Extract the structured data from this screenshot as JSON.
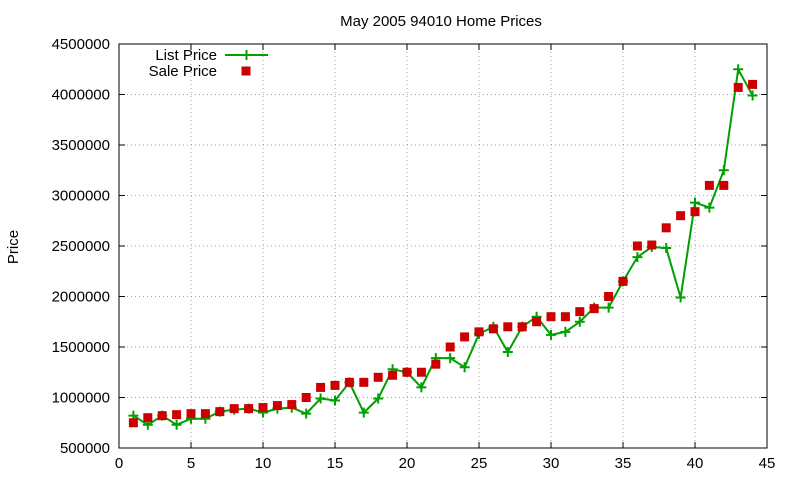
{
  "chart_data": {
    "type": "line",
    "title": "May 2005 94010 Home Prices",
    "xlabel": "",
    "ylabel": "Price",
    "xlim": [
      0,
      45
    ],
    "ylim": [
      500000,
      4500000
    ],
    "xticks": [
      0,
      5,
      10,
      15,
      20,
      25,
      30,
      35,
      40,
      45
    ],
    "yticks": [
      500000,
      1000000,
      1500000,
      2000000,
      2500000,
      3000000,
      3500000,
      4000000,
      4500000
    ],
    "grid": true,
    "legend_position": "top-left",
    "series": [
      {
        "name": "List Price",
        "style": "linespoints",
        "marker": "plus",
        "color": "#00a000",
        "x": [
          1,
          2,
          3,
          4,
          5,
          6,
          7,
          8,
          9,
          10,
          11,
          12,
          13,
          14,
          15,
          16,
          17,
          18,
          19,
          20,
          21,
          22,
          23,
          24,
          25,
          26,
          27,
          28,
          29,
          30,
          31,
          32,
          33,
          34,
          35,
          36,
          37,
          38,
          39,
          40,
          41,
          42,
          43,
          44
        ],
        "values": [
          820000,
          730000,
          820000,
          730000,
          790000,
          790000,
          860000,
          880000,
          890000,
          850000,
          890000,
          900000,
          840000,
          990000,
          970000,
          1150000,
          850000,
          990000,
          1280000,
          1250000,
          1100000,
          1390000,
          1390000,
          1300000,
          1630000,
          1700000,
          1450000,
          1700000,
          1800000,
          1620000,
          1650000,
          1750000,
          1890000,
          1890000,
          2150000,
          2390000,
          2490000,
          2480000,
          1990000,
          2930000,
          2880000,
          3250000,
          4250000,
          3990000
        ]
      },
      {
        "name": "Sale Price",
        "style": "points",
        "marker": "square",
        "color": "#cc0000",
        "x": [
          1,
          2,
          3,
          4,
          5,
          6,
          7,
          8,
          9,
          10,
          11,
          12,
          13,
          14,
          15,
          16,
          17,
          18,
          19,
          20,
          21,
          22,
          23,
          24,
          25,
          26,
          27,
          28,
          29,
          30,
          31,
          32,
          33,
          34,
          35,
          36,
          37,
          38,
          39,
          40,
          41,
          42,
          43,
          44
        ],
        "values": [
          750000,
          800000,
          820000,
          830000,
          840000,
          840000,
          860000,
          890000,
          890000,
          900000,
          920000,
          930000,
          1000000,
          1100000,
          1120000,
          1150000,
          1150000,
          1200000,
          1220000,
          1250000,
          1250000,
          1330000,
          1500000,
          1600000,
          1650000,
          1680000,
          1700000,
          1700000,
          1750000,
          1800000,
          1800000,
          1850000,
          1880000,
          2000000,
          2150000,
          2500000,
          2510000,
          2680000,
          2800000,
          2840000,
          3100000,
          3100000,
          4070000,
          4100000
        ]
      }
    ]
  }
}
